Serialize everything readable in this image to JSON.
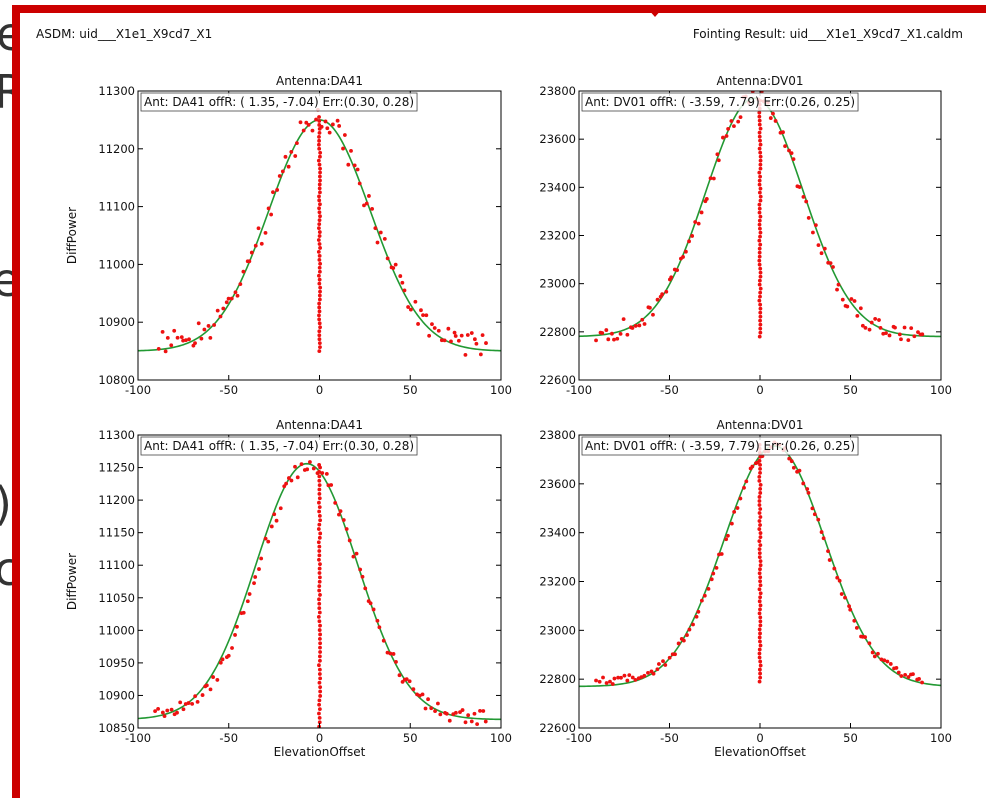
{
  "background_letters": [
    "e",
    "R",
    "",
    "e",
    "",
    ")",
    "c"
  ],
  "header": {
    "left": "ASDM: uid___X1e1_X9cd7_X1",
    "right": "Fointing Result: uid___X1e1_X9cd7_X1.caldm"
  },
  "colors": {
    "frame": "#cc0000",
    "points": "#ee1111",
    "fit": "#229933",
    "axes": "#000000"
  },
  "chart_data": [
    {
      "type": "scatter",
      "title": "Antenna:DA41",
      "annotation": "Ant: DA41 offR: (  1.35,  -7.04) Err:(0.30, 0.28)",
      "xlabel": "",
      "ylabel": "DiffPower",
      "xlim": [
        -100,
        100
      ],
      "ylim": [
        10800,
        11300
      ],
      "xticks": [
        "-100",
        "-50",
        "0",
        "50",
        "100"
      ],
      "yticks": [
        "10800",
        "10900",
        "11000",
        "11100",
        "11200",
        "11300"
      ],
      "fit": {
        "base": 10850,
        "amp": 400,
        "center": 0,
        "sigma": 28
      },
      "scan": {
        "base": 10860,
        "amp": 395,
        "center": 0,
        "sigma": 27,
        "x_start": -88,
        "x_end": 92,
        "n": 110,
        "jitter": 22
      },
      "vertical": {
        "x": 0,
        "y_start": 10850,
        "y_end": 11255,
        "n": 60
      },
      "series": []
    },
    {
      "type": "scatter",
      "title": "Antenna:DV01",
      "annotation": "Ant: DV01 offR: ( -3.59,  7.79) Err:(0.26, 0.25)",
      "xlabel": "",
      "ylabel": "",
      "xlim": [
        -100,
        100
      ],
      "ylim": [
        22600,
        23800
      ],
      "xticks": [
        "-100",
        "-50",
        "0",
        "50",
        "100"
      ],
      "yticks": [
        "22600",
        "22800",
        "23000",
        "23200",
        "23400",
        "23600",
        "23800"
      ],
      "fit": {
        "base": 22780,
        "amp": 990,
        "center": -3,
        "sigma": 27
      },
      "scan": {
        "base": 22795,
        "amp": 975,
        "center": -3,
        "sigma": 26,
        "x_start": -90,
        "x_end": 90,
        "n": 110,
        "jitter": 40
      },
      "vertical": {
        "x": 0,
        "y_start": 22780,
        "y_end": 23760,
        "n": 60
      },
      "series": []
    },
    {
      "type": "scatter",
      "title": "Antenna:DA41",
      "annotation": "Ant: DA41 offR: (  1.35,  -7.04) Err:(0.30, 0.28)",
      "xlabel": "ElevationOffset",
      "ylabel": "DiffPower",
      "xlim": [
        -100,
        100
      ],
      "ylim": [
        10850,
        11300
      ],
      "xticks": [
        "-100",
        "-50",
        "0",
        "50",
        "100"
      ],
      "yticks": [
        "10850",
        "10900",
        "10950",
        "11000",
        "11050",
        "11100",
        "11150",
        "11200",
        "11250",
        "11300"
      ],
      "fit": {
        "base": 10863,
        "amp": 393,
        "center": -7,
        "sigma": 28
      },
      "scan": {
        "base": 10865,
        "amp": 390,
        "center": -6,
        "sigma": 27,
        "x_start": -90,
        "x_end": 92,
        "n": 110,
        "jitter": 12
      },
      "vertical": {
        "x": 0,
        "y_start": 10852,
        "y_end": 11250,
        "n": 60
      },
      "series": []
    },
    {
      "type": "scatter",
      "title": "Antenna:DV01",
      "annotation": "Ant: DV01 offR: ( -3.59,  7.79) Err:(0.26, 0.25)",
      "xlabel": "ElevationOffset",
      "ylabel": "",
      "xlim": [
        -100,
        100
      ],
      "ylim": [
        22600,
        23800
      ],
      "xticks": [
        "-100",
        "-50",
        "0",
        "50",
        "100"
      ],
      "yticks": [
        "22600",
        "22800",
        "23000",
        "23200",
        "23400",
        "23600",
        "23800"
      ],
      "fit": {
        "base": 22770,
        "amp": 985,
        "center": 8,
        "sigma": 28
      },
      "scan": {
        "base": 22790,
        "amp": 965,
        "center": 8,
        "sigma": 27,
        "x_start": -90,
        "x_end": 90,
        "n": 110,
        "jitter": 18
      },
      "vertical": {
        "x": 0,
        "y_start": 22790,
        "y_end": 23760,
        "n": 60
      },
      "series": []
    }
  ]
}
